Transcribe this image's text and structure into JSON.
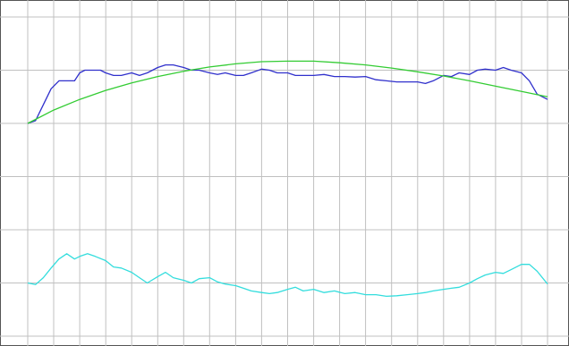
{
  "chart_data": {
    "type": "line",
    "title": "",
    "xlabel": "",
    "ylabel": "",
    "grid": true,
    "background": "#ffffff",
    "grid_color": "#c0c0c0",
    "frame_color": "#555555",
    "x_divisions": 20,
    "y_divisions": 6,
    "xlim": [
      0,
      20
    ],
    "ylim": [
      0,
      6
    ],
    "series": [
      {
        "color": "#3030cc",
        "x": [
          0,
          0.3,
          0.6,
          0.9,
          1.2,
          1.5,
          1.8,
          2.0,
          2.2,
          2.5,
          2.8,
          3.0,
          3.3,
          3.6,
          4.0,
          4.3,
          4.6,
          5.0,
          5.3,
          5.6,
          6.0,
          6.3,
          6.6,
          7.0,
          7.3,
          7.6,
          8.0,
          8.3,
          8.6,
          9.0,
          9.3,
          9.6,
          10.0,
          10.3,
          10.6,
          11.0,
          11.4,
          11.8,
          12.2,
          12.6,
          13.0,
          13.4,
          13.8,
          14.2,
          14.6,
          15.0,
          15.3,
          15.6,
          16.0,
          16.3,
          16.6,
          17.0,
          17.3,
          17.6,
          18.0,
          18.3,
          18.6,
          19.0,
          19.3,
          19.6,
          20.0
        ],
        "y": [
          4.0,
          4.05,
          4.35,
          4.65,
          4.8,
          4.8,
          4.8,
          4.95,
          5.0,
          5.0,
          5.0,
          4.95,
          4.9,
          4.9,
          4.95,
          4.9,
          4.95,
          5.05,
          5.1,
          5.1,
          5.05,
          5.0,
          5.0,
          4.95,
          4.92,
          4.95,
          4.9,
          4.9,
          4.95,
          5.02,
          5.0,
          4.95,
          4.95,
          4.9,
          4.9,
          4.9,
          4.92,
          4.88,
          4.88,
          4.87,
          4.88,
          4.82,
          4.8,
          4.78,
          4.78,
          4.78,
          4.75,
          4.8,
          4.9,
          4.88,
          4.95,
          4.92,
          5.0,
          5.02,
          5.0,
          5.05,
          5.0,
          4.95,
          4.8,
          4.55,
          4.45
        ]
      },
      {
        "color": "#33cc33",
        "x": [
          0,
          1,
          2,
          3,
          4,
          5,
          6,
          7,
          8,
          9,
          10,
          11,
          12,
          13,
          14,
          15,
          16,
          17,
          18,
          19,
          20
        ],
        "y": [
          4.0,
          4.25,
          4.45,
          4.62,
          4.76,
          4.88,
          4.98,
          5.06,
          5.12,
          5.16,
          5.17,
          5.17,
          5.14,
          5.1,
          5.04,
          4.97,
          4.89,
          4.8,
          4.7,
          4.6,
          4.5
        ]
      },
      {
        "color": "#33dddd",
        "x": [
          0,
          0.3,
          0.6,
          0.9,
          1.2,
          1.5,
          1.8,
          2.0,
          2.3,
          2.6,
          3.0,
          3.3,
          3.6,
          4.0,
          4.3,
          4.6,
          5.0,
          5.3,
          5.6,
          6.0,
          6.3,
          6.6,
          7.0,
          7.3,
          7.6,
          8.0,
          8.3,
          8.6,
          9.0,
          9.3,
          9.6,
          10.0,
          10.3,
          10.6,
          11.0,
          11.4,
          11.8,
          12.2,
          12.6,
          13.0,
          13.4,
          13.8,
          14.2,
          14.6,
          15.0,
          15.3,
          15.6,
          16.0,
          16.3,
          16.6,
          17.0,
          17.3,
          17.6,
          18.0,
          18.3,
          18.6,
          19.0,
          19.3,
          19.6,
          20.0
        ],
        "y": [
          1.0,
          0.97,
          1.1,
          1.28,
          1.45,
          1.55,
          1.45,
          1.5,
          1.55,
          1.5,
          1.42,
          1.3,
          1.28,
          1.2,
          1.1,
          1.0,
          1.12,
          1.2,
          1.1,
          1.05,
          1.0,
          1.08,
          1.1,
          1.02,
          0.98,
          0.95,
          0.9,
          0.85,
          0.82,
          0.8,
          0.82,
          0.88,
          0.92,
          0.85,
          0.88,
          0.82,
          0.85,
          0.8,
          0.82,
          0.78,
          0.78,
          0.75,
          0.76,
          0.78,
          0.8,
          0.82,
          0.85,
          0.88,
          0.9,
          0.92,
          1.0,
          1.08,
          1.15,
          1.2,
          1.18,
          1.25,
          1.35,
          1.35,
          1.22,
          0.98
        ]
      }
    ]
  }
}
